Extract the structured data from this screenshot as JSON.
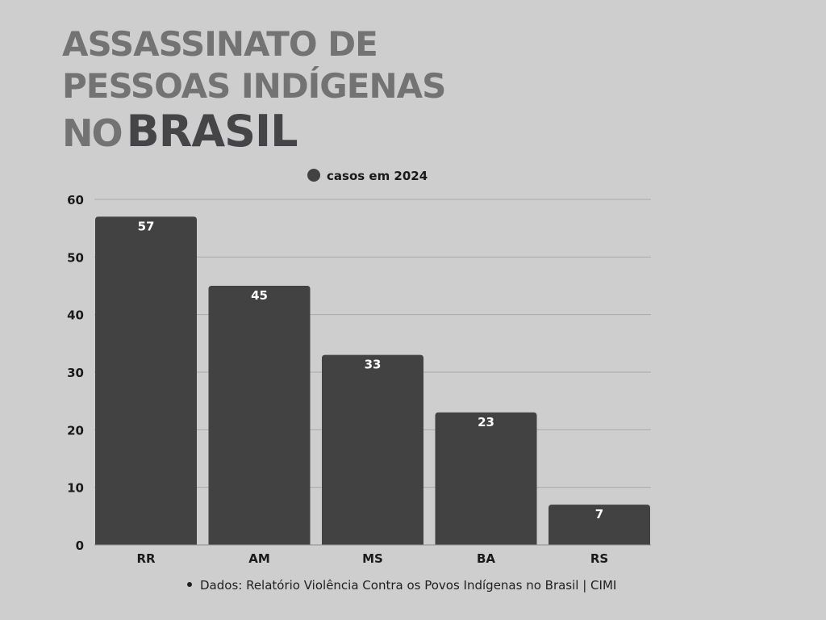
{
  "title": {
    "line1": "ASSASSINATO DE",
    "line2": "PESSOAS INDÍGENAS",
    "line3_prefix": "NO",
    "line3_emphasis": "BRASIL"
  },
  "chart_data": {
    "type": "bar",
    "categories": [
      "RR",
      "AM",
      "MS",
      "BA",
      "RS"
    ],
    "series": [
      {
        "name": "casos em 2024",
        "values": [
          57,
          45,
          33,
          23,
          7
        ]
      }
    ],
    "ylim": [
      0,
      60
    ],
    "yticks": [
      0,
      10,
      20,
      30,
      40,
      50,
      60
    ],
    "data_labels": true,
    "grid": true,
    "legend_position": "top-center",
    "bar_color": "#434243",
    "gridline_color": "#a9a9a9"
  },
  "footer": {
    "source": "Dados:  Relatório Violência Contra os Povos Indígenas no Brasil | CIMI"
  }
}
